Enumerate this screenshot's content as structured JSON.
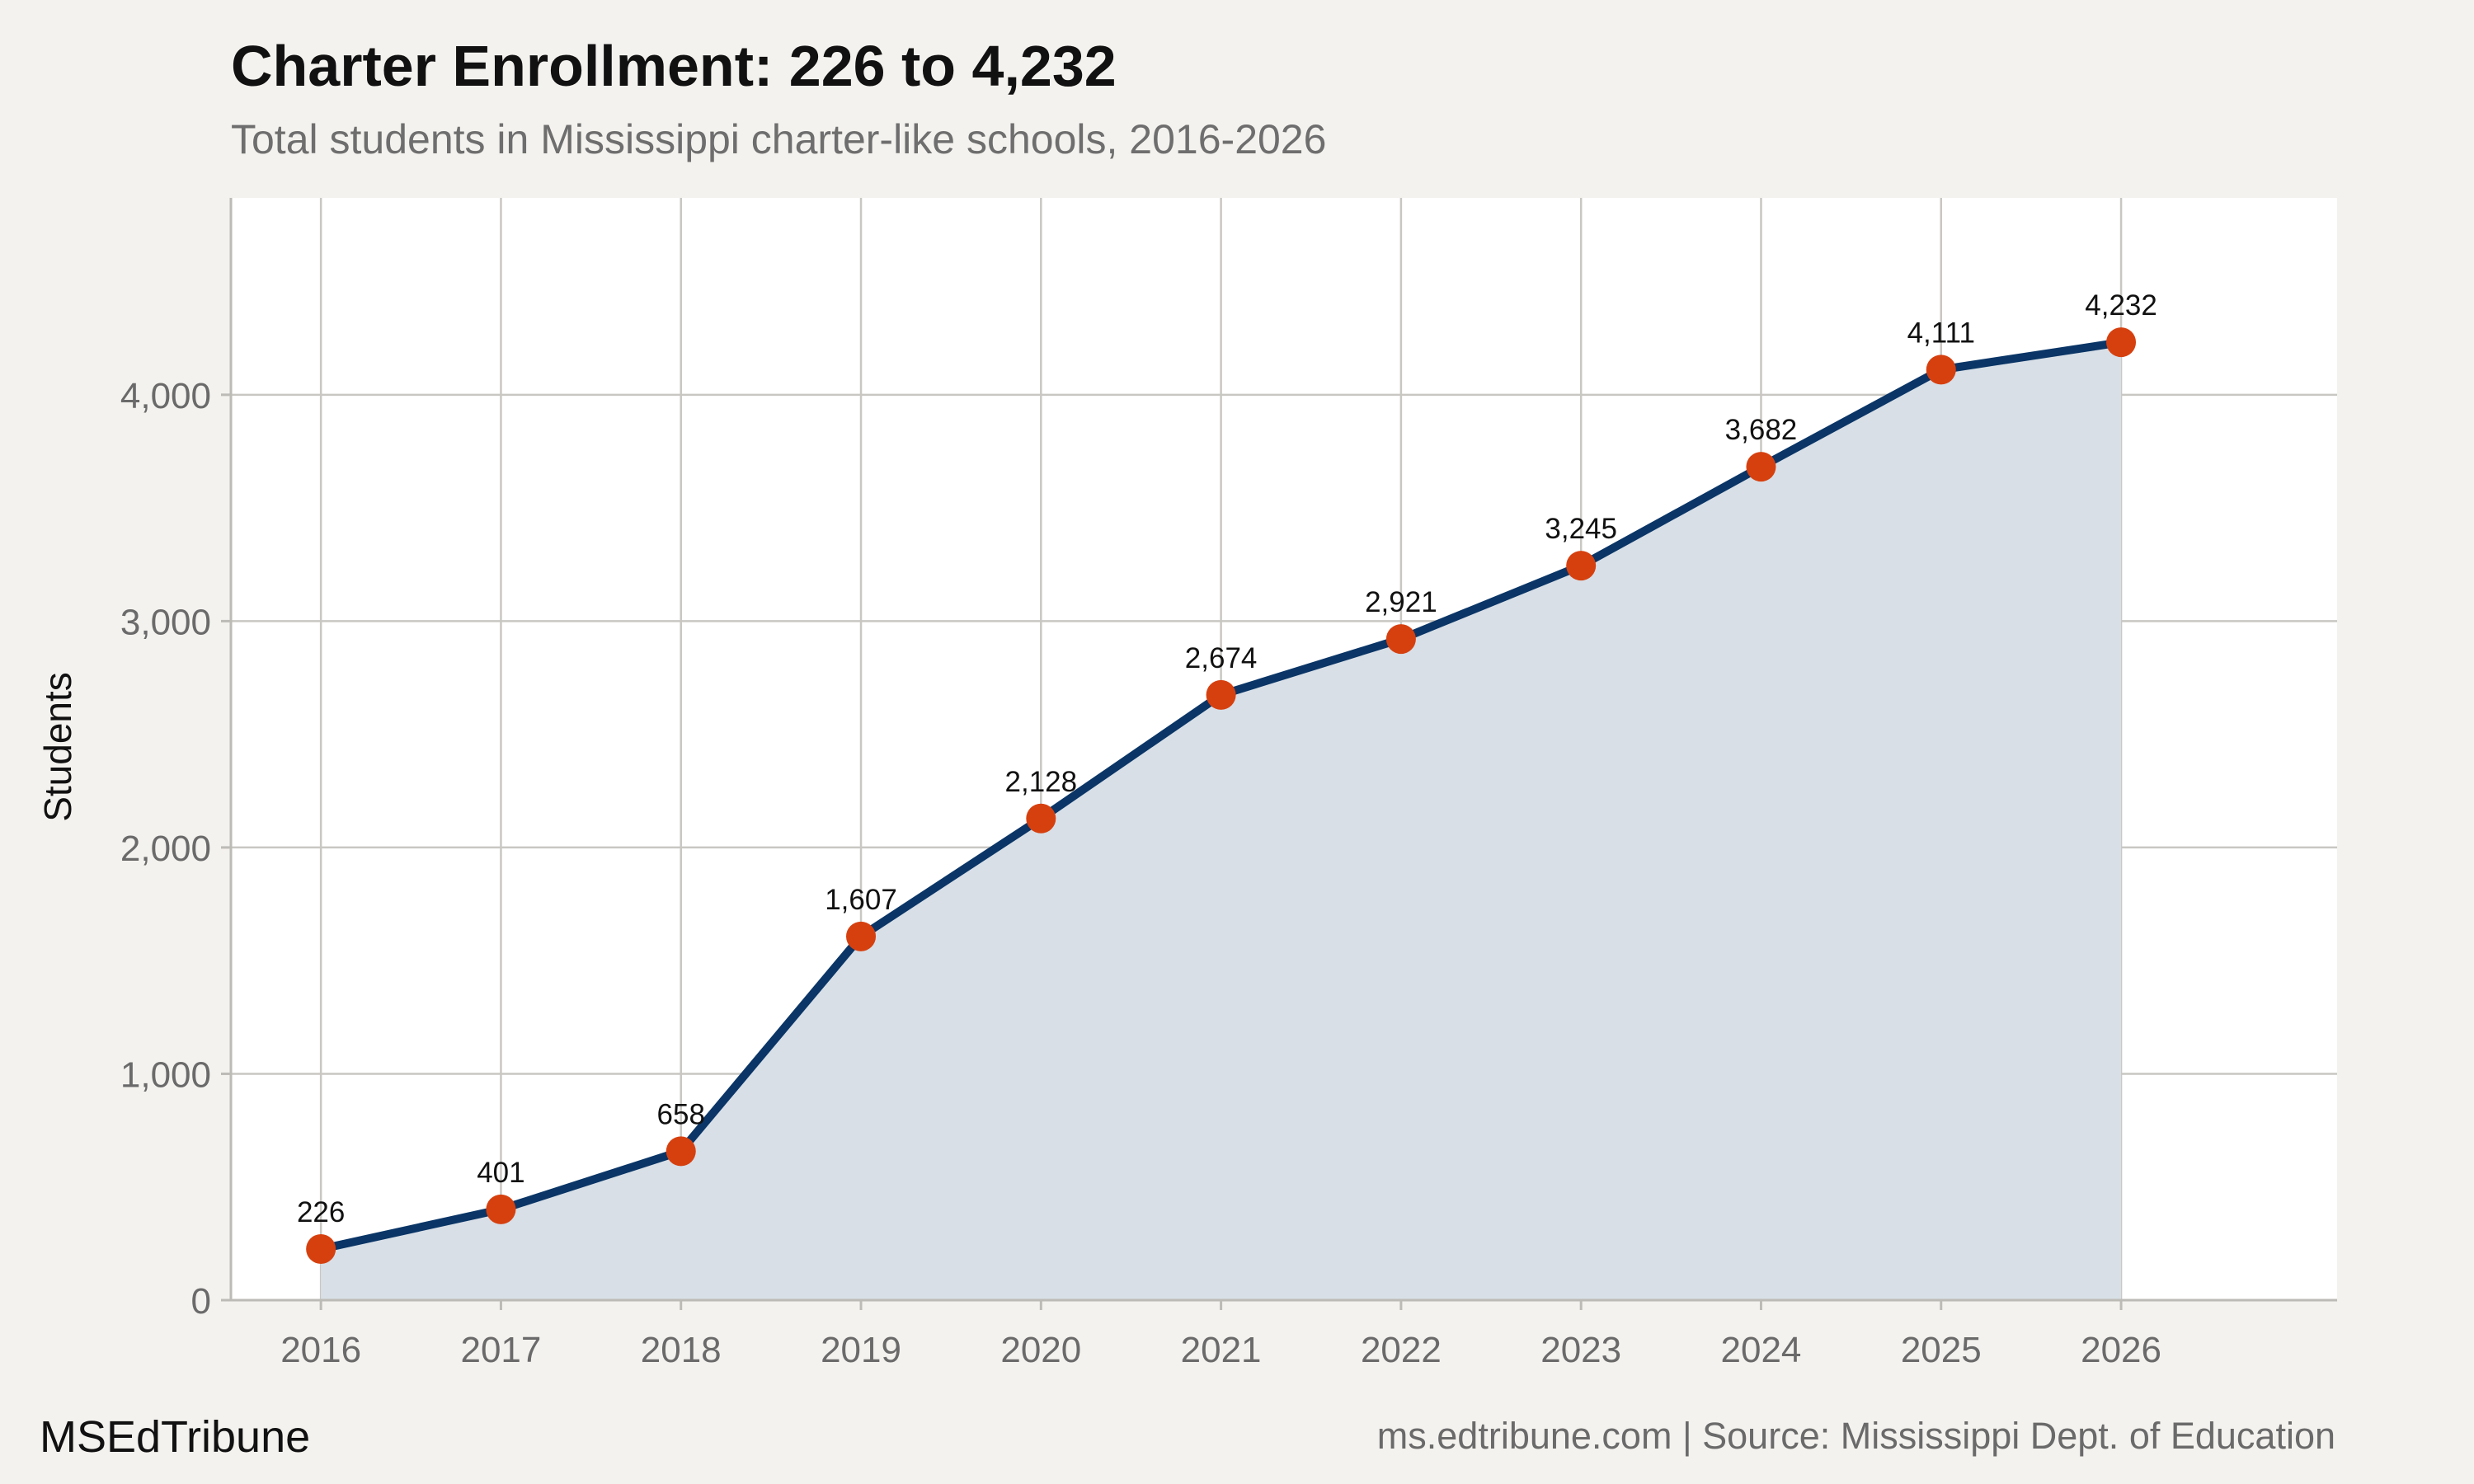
{
  "header": {
    "title": "Charter Enrollment: 226 to 4,232",
    "subtitle": "Total students in Mississippi charter-like schools, 2016-2026"
  },
  "footer": {
    "brand": "MSEdTribune",
    "source": "ms.edtribune.com | Source: Mississippi Dept. of Education"
  },
  "colors": {
    "line": "#0a3566",
    "marker": "#d6400f",
    "area_fill": "#d8dfe7",
    "plot_bg": "#ffffff",
    "grid": "#c9c7c2"
  },
  "chart_data": {
    "type": "area",
    "title": "Charter Enrollment: 226 to 4,232",
    "subtitle": "Total students in Mississippi charter-like schools, 2016-2026",
    "xlabel": "",
    "ylabel": "Students",
    "categories": [
      "2016",
      "2017",
      "2018",
      "2019",
      "2020",
      "2021",
      "2022",
      "2023",
      "2024",
      "2025",
      "2026"
    ],
    "values": [
      226,
      401,
      658,
      1607,
      2128,
      2674,
      2921,
      3245,
      3682,
      4111,
      4232
    ],
    "data_labels": [
      "226",
      "401",
      "658",
      "1,607",
      "2,128",
      "2,674",
      "2,921",
      "3,245",
      "3,682",
      "4,111",
      "4,232"
    ],
    "xlim": [
      2015.5,
      2027.2
    ],
    "ylim": [
      0,
      4870
    ],
    "yticks": [
      0,
      1000,
      2000,
      3000,
      4000
    ],
    "ytick_labels": [
      "0",
      "1,000",
      "2,000",
      "3,000",
      "4,000"
    ],
    "grid": true,
    "legend": false
  }
}
